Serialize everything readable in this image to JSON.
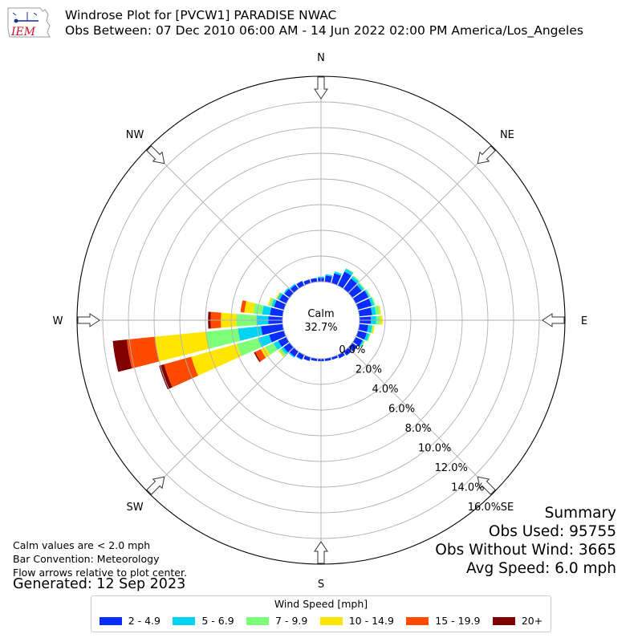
{
  "header": {
    "logo_text": "IEM",
    "title": "Windrose Plot for [PVCW1] PARADISE NWAC",
    "subtitle": "Obs Between: 07 Dec 2010 06:00 AM - 14 Jun 2022 02:00 PM America/Los_Angeles"
  },
  "chart_data": {
    "type": "windrose",
    "calm_label": "Calm",
    "calm_value": "32.7%",
    "directions": [
      "N",
      "NE",
      "E",
      "SE",
      "S",
      "SW",
      "W",
      "NW"
    ],
    "radial_ticks": [
      0,
      2,
      4,
      6,
      8,
      10,
      12,
      14,
      16
    ],
    "radial_tick_labels": [
      "0.0%",
      "2.0%",
      "4.0%",
      "6.0%",
      "8.0%",
      "10.0%",
      "12.0%",
      "14.0%",
      "16.0%"
    ],
    "rmax": 16,
    "speed_bins": [
      "2 - 4.9",
      "5 - 6.9",
      "7 - 9.9",
      "10 - 14.9",
      "15 - 19.9",
      "20+"
    ],
    "colors": [
      "#0a2dff",
      "#00d4f0",
      "#7dff7a",
      "#ffe600",
      "#ff4a00",
      "#800000"
    ],
    "bar_direction_degrees": [
      0,
      10,
      20,
      30,
      40,
      50,
      60,
      70,
      80,
      90,
      100,
      110,
      120,
      130,
      140,
      150,
      160,
      170,
      180,
      190,
      200,
      210,
      220,
      230,
      240,
      250,
      260,
      270,
      280,
      290,
      300,
      310,
      320,
      330,
      340,
      350
    ],
    "cumulative_percent": [
      [
        0.3,
        0.4,
        0.4,
        0.4,
        0.4,
        0.4
      ],
      [
        0.5,
        0.6,
        0.6,
        0.6,
        0.6,
        0.6
      ],
      [
        0.8,
        0.95,
        0.95,
        0.95,
        0.95,
        0.95
      ],
      [
        1.2,
        1.45,
        1.5,
        1.5,
        1.5,
        1.5
      ],
      [
        1.0,
        1.2,
        1.3,
        1.3,
        1.3,
        1.3
      ],
      [
        0.9,
        1.1,
        1.2,
        1.2,
        1.2,
        1.2
      ],
      [
        1.1,
        1.2,
        1.3,
        1.3,
        1.3,
        1.3
      ],
      [
        1.1,
        1.3,
        1.4,
        1.4,
        1.4,
        1.4
      ],
      [
        1.0,
        1.3,
        1.6,
        1.7,
        1.7,
        1.7
      ],
      [
        0.9,
        1.3,
        1.6,
        1.8,
        1.8,
        1.8
      ],
      [
        0.7,
        1.0,
        1.1,
        1.2,
        1.2,
        1.2
      ],
      [
        0.7,
        0.9,
        1.0,
        1.0,
        1.0,
        1.0
      ],
      [
        0.6,
        0.7,
        0.8,
        0.8,
        0.8,
        0.8
      ],
      [
        0.5,
        0.5,
        0.5,
        0.5,
        0.5,
        0.5
      ],
      [
        0.4,
        0.4,
        0.4,
        0.4,
        0.4,
        0.4
      ],
      [
        0.3,
        0.3,
        0.3,
        0.3,
        0.3,
        0.3
      ],
      [
        0.2,
        0.2,
        0.2,
        0.2,
        0.2,
        0.2
      ],
      [
        0.2,
        0.2,
        0.2,
        0.2,
        0.2,
        0.2
      ],
      [
        0.2,
        0.2,
        0.2,
        0.2,
        0.2,
        0.2
      ],
      [
        0.2,
        0.2,
        0.2,
        0.2,
        0.2,
        0.2
      ],
      [
        0.3,
        0.3,
        0.3,
        0.3,
        0.3,
        0.3
      ],
      [
        0.4,
        0.45,
        0.45,
        0.45,
        0.45,
        0.45
      ],
      [
        0.5,
        0.6,
        0.6,
        0.6,
        0.6,
        0.6
      ],
      [
        0.6,
        0.8,
        1.0,
        1.1,
        1.1,
        1.1
      ],
      [
        0.7,
        1.1,
        1.8,
        2.2,
        2.7,
        2.8
      ],
      [
        1.2,
        2.1,
        3.8,
        7.5,
        9.7,
        10.1
      ],
      [
        1.7,
        3.5,
        6.0,
        10.0,
        12.2,
        13.3
      ],
      [
        1.1,
        2.0,
        3.6,
        4.8,
        5.6,
        5.8
      ],
      [
        1.0,
        1.6,
        2.3,
        3.0,
        3.3,
        3.3
      ],
      [
        0.8,
        1.0,
        1.2,
        1.3,
        1.3,
        1.3
      ],
      [
        0.6,
        0.8,
        0.8,
        0.9,
        0.9,
        0.9
      ],
      [
        0.5,
        0.6,
        0.6,
        0.6,
        0.6,
        0.6
      ],
      [
        0.4,
        0.5,
        0.5,
        0.5,
        0.5,
        0.5
      ],
      [
        0.4,
        0.4,
        0.4,
        0.4,
        0.4,
        0.4
      ],
      [
        0.3,
        0.3,
        0.3,
        0.3,
        0.3,
        0.3
      ],
      [
        0.3,
        0.3,
        0.3,
        0.3,
        0.3,
        0.3
      ]
    ]
  },
  "notes": {
    "calm": "Calm values are < 2.0 mph",
    "convention": "Bar Convention: Meteorology",
    "flow": "Flow arrows relative to plot center.",
    "generated": "Generated: 12 Sep 2023"
  },
  "summary": {
    "title": "Summary",
    "obs_used": "Obs Used: 95755",
    "obs_without_wind": "Obs Without Wind: 3665",
    "avg_speed": "Avg Speed: 6.0 mph"
  },
  "legend": {
    "title": "Wind Speed [mph]",
    "items": [
      "2 - 4.9",
      "5 - 6.9",
      "7 - 9.9",
      "10 - 14.9",
      "15 - 19.9",
      "20+"
    ]
  }
}
